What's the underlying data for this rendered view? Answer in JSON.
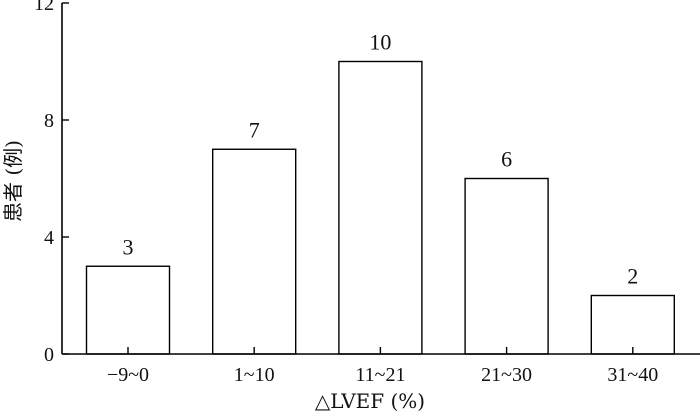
{
  "chart_data": {
    "type": "bar",
    "categories": [
      "−9~0",
      "1~10",
      "11~21",
      "21~30",
      "31~40"
    ],
    "values": [
      3,
      7,
      10,
      6,
      2
    ],
    "data_labels": [
      "3",
      "7",
      "10",
      "6",
      "2"
    ],
    "title": "",
    "xlabel": "△LVEF (%)",
    "ylabel": "患者 (例)",
    "ylim": [
      0,
      12
    ],
    "yticks": [
      0,
      4,
      8,
      12
    ],
    "ytick_labels": [
      "0",
      "4",
      "8",
      "12"
    ],
    "grid": false,
    "legend": "none",
    "bar_fill": "#ffffff",
    "bar_stroke": "#000000"
  }
}
